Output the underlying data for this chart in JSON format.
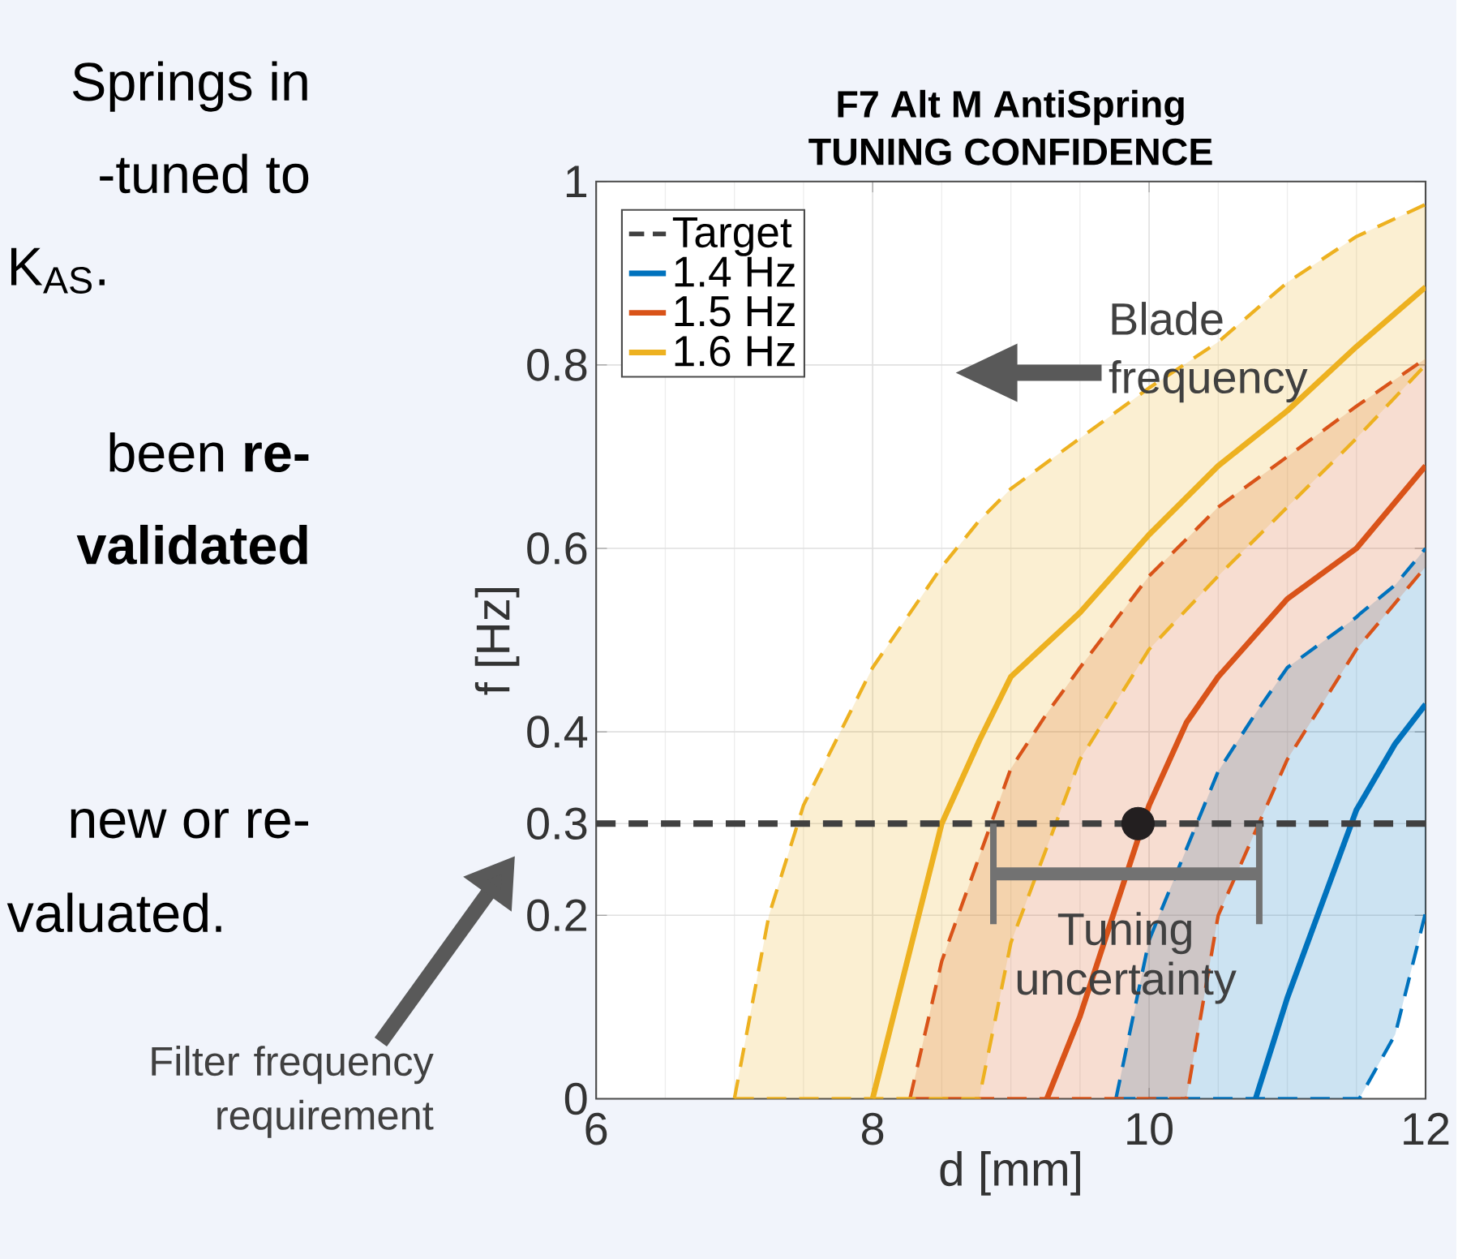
{
  "chart_data": {
    "type": "line",
    "title": "F7 Alt M AntiSpring",
    "subtitle": "TUNING CONFIDENCE",
    "xlabel": "d [mm]",
    "ylabel": "f [Hz]",
    "xlim": [
      6,
      12
    ],
    "ylim": [
      0,
      1
    ],
    "xticks": [
      6,
      8,
      10,
      12
    ],
    "yticks": [
      0,
      0.2,
      0.3,
      0.4,
      0.6,
      0.8,
      1
    ],
    "grid": true,
    "legend": "top left",
    "ref_lines": [
      {
        "axis": "y",
        "value": 0.3,
        "label": "Target",
        "color": "#404040",
        "line_style": "dashed"
      }
    ],
    "series": [
      {
        "name": "1.4 Hz",
        "color": "#0072bd",
        "x": [
          9.76,
          10,
          10.5,
          10.77,
          11,
          11.5,
          11.52,
          11.78,
          12
        ],
        "values": [
          null,
          null,
          null,
          0,
          0.11,
          0.315,
          0.32,
          0.387,
          0.43
        ],
        "lower": [
          0,
          0,
          0,
          0,
          0,
          0,
          0,
          0.07,
          0.203
        ],
        "upper": [
          0,
          0.173,
          0.357,
          0.42,
          0.47,
          0.525,
          0.528,
          0.56,
          0.6
        ]
      },
      {
        "color": "#0072bd",
        "line_style": "dashed",
        "x": [
          9.76,
          10,
          10.5,
          10.77,
          11,
          11.5,
          11.52,
          11.78,
          12
        ],
        "values": [
          0,
          0,
          0,
          0,
          0,
          0,
          0,
          0.07,
          0.203
        ]
      },
      {
        "color": "#0072bd",
        "line_style": "dashed",
        "x": [
          9.76,
          10,
          10.5,
          10.77,
          11,
          11.5,
          11.52,
          11.78,
          12
        ],
        "values": [
          0,
          0.173,
          0.357,
          0.42,
          0.47,
          0.525,
          0.528,
          0.56,
          0.6
        ]
      },
      {
        "name": "1.5 Hz",
        "color": "#d95319",
        "x": [
          8.27,
          8.5,
          9,
          9.26,
          9.5,
          10,
          10.27,
          10.5,
          11,
          11.5,
          12
        ],
        "values": [
          null,
          null,
          null,
          0,
          0.09,
          0.32,
          0.41,
          0.46,
          0.545,
          0.6,
          0.69
        ],
        "lower": [
          0,
          0,
          0,
          0,
          0,
          0,
          0,
          0.2,
          0.37,
          0.49,
          0.58
        ],
        "upper": [
          0,
          0.15,
          0.36,
          0.42,
          0.47,
          0.57,
          0.61,
          0.645,
          0.7,
          0.755,
          0.807
        ]
      },
      {
        "color": "#d95319",
        "line_style": "dashed",
        "x": [
          8.27,
          8.5,
          9,
          9.26,
          9.5,
          10,
          10.27,
          10.5,
          11,
          11.5,
          12
        ],
        "values": [
          0,
          0,
          0,
          0,
          0,
          0,
          0,
          0.2,
          0.37,
          0.49,
          0.58
        ]
      },
      {
        "color": "#d95319",
        "line_style": "dashed",
        "x": [
          8.27,
          8.5,
          9,
          9.26,
          9.5,
          10,
          10.27,
          10.5,
          11,
          11.5,
          12
        ],
        "values": [
          0,
          0.15,
          0.36,
          0.42,
          0.47,
          0.57,
          0.61,
          0.645,
          0.7,
          0.755,
          0.807
        ]
      },
      {
        "name": "1.6 Hz",
        "color": "#edb120",
        "x": [
          7,
          7.25,
          7.5,
          8,
          8.5,
          8.77,
          9,
          9.5,
          10,
          10.5,
          11,
          11.5,
          12
        ],
        "values": [
          null,
          null,
          null,
          0,
          0.3,
          0.39,
          0.46,
          0.53,
          0.615,
          0.69,
          0.75,
          0.82,
          0.885
        ],
        "lower": [
          0,
          0,
          0,
          0,
          0,
          0,
          0.17,
          0.37,
          0.49,
          0.57,
          0.645,
          0.72,
          0.8
        ],
        "upper": [
          0,
          0.2,
          0.32,
          0.47,
          0.58,
          0.63,
          0.665,
          0.72,
          0.775,
          0.825,
          0.89,
          0.94,
          0.975
        ]
      },
      {
        "color": "#edb120",
        "line_style": "dashed",
        "x": [
          7,
          7.25,
          7.5,
          8,
          8.5,
          8.77,
          9,
          9.5,
          10,
          10.5,
          11,
          11.5,
          12
        ],
        "values": [
          0,
          0,
          0,
          0,
          0,
          0,
          0.17,
          0.37,
          0.49,
          0.57,
          0.645,
          0.72,
          0.8
        ]
      },
      {
        "color": "#edb120",
        "line_style": "dashed",
        "x": [
          7,
          7.25,
          7.5,
          8,
          8.5,
          8.77,
          9,
          9.5,
          10,
          10.5,
          11,
          11.5,
          12
        ],
        "values": [
          0,
          0.2,
          0.32,
          0.47,
          0.58,
          0.63,
          0.665,
          0.72,
          0.775,
          0.825,
          0.89,
          0.94,
          0.975
        ]
      },
      {
        "type": "scatter",
        "color": "#231f20",
        "x": [
          9.92
        ],
        "values": [
          0.3
        ]
      }
    ],
    "annotations": [
      {
        "text": "Tuning uncertainty",
        "x": 9.83,
        "y": 0.245
      },
      "Blade frequency",
      "Filter frequency requirement",
      "Springs in",
      "-tuned to",
      "K$_{AS}$.",
      "been **re-**",
      "**validated**",
      "new or re-",
      "valuated."
    ]
  }
}
